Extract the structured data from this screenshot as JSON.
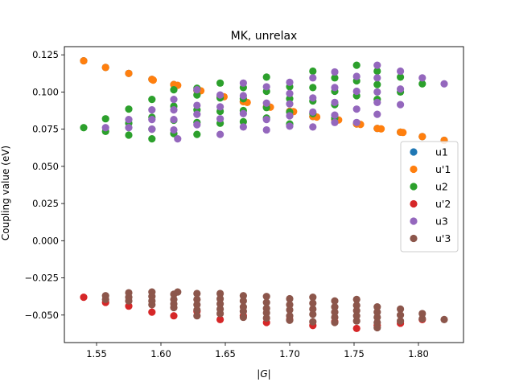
{
  "chart_data": {
    "type": "scatter",
    "title": "MK, unrelax",
    "xlabel": "|G|",
    "ylabel": "Coupling value (eV)",
    "xlim": [
      1.525,
      1.835
    ],
    "ylim": [
      -0.0685,
      0.1305
    ],
    "xticks": [
      1.55,
      1.6,
      1.65,
      1.7,
      1.75,
      1.8
    ],
    "xtick_labels": [
      "1.55",
      "1.60",
      "1.65",
      "1.70",
      "1.75",
      "1.80"
    ],
    "yticks": [
      -0.05,
      -0.025,
      0.0,
      0.025,
      0.05,
      0.075,
      0.1,
      0.125
    ],
    "ytick_labels": [
      "−0.050",
      "−0.025",
      "0.000",
      "0.025",
      "0.050",
      "0.075",
      "0.100",
      "0.125"
    ],
    "legend_position": "center-right",
    "grid": false,
    "series": [
      {
        "name": "u1",
        "color": "#1f77b4",
        "points": [
          [
            1.54,
            0.121
          ],
          [
            1.557,
            0.1165
          ],
          [
            1.575,
            0.1125
          ],
          [
            1.593,
            0.1085
          ],
          [
            1.61,
            0.105
          ],
          [
            1.628,
            0.101
          ],
          [
            1.646,
            0.097
          ],
          [
            1.664,
            0.0935
          ],
          [
            1.682,
            0.09
          ],
          [
            1.7,
            0.087
          ],
          [
            1.718,
            0.0835
          ],
          [
            1.735,
            0.0815
          ],
          [
            1.752,
            0.0785
          ],
          [
            1.768,
            0.0755
          ],
          [
            1.786,
            0.073
          ],
          [
            1.803,
            0.07
          ],
          [
            1.82,
            0.0675
          ]
        ]
      },
      {
        "name": "u'1",
        "color": "#ff7f0e",
        "points": [
          [
            1.54,
            0.121
          ],
          [
            1.557,
            0.1165
          ],
          [
            1.575,
            0.1125
          ],
          [
            1.593,
            0.1085
          ],
          [
            1.594,
            0.108
          ],
          [
            1.61,
            0.105
          ],
          [
            1.613,
            0.1045
          ],
          [
            1.628,
            0.101
          ],
          [
            1.631,
            0.1008
          ],
          [
            1.646,
            0.097
          ],
          [
            1.649,
            0.0968
          ],
          [
            1.664,
            0.0935
          ],
          [
            1.667,
            0.093
          ],
          [
            1.682,
            0.09
          ],
          [
            1.685,
            0.0898
          ],
          [
            1.7,
            0.087
          ],
          [
            1.703,
            0.0868
          ],
          [
            1.718,
            0.0835
          ],
          [
            1.721,
            0.0832
          ],
          [
            1.735,
            0.0815
          ],
          [
            1.738,
            0.0812
          ],
          [
            1.752,
            0.0785
          ],
          [
            1.755,
            0.0782
          ],
          [
            1.768,
            0.0755
          ],
          [
            1.771,
            0.0752
          ],
          [
            1.786,
            0.073
          ],
          [
            1.788,
            0.0728
          ],
          [
            1.803,
            0.07
          ],
          [
            1.82,
            0.0675
          ]
        ]
      },
      {
        "name": "u2",
        "color": "#2ca02c",
        "points": [
          [
            1.54,
            0.076
          ],
          [
            1.557,
            0.082
          ],
          [
            1.557,
            0.0735
          ],
          [
            1.575,
            0.0885
          ],
          [
            1.575,
            0.079
          ],
          [
            1.575,
            0.071
          ],
          [
            1.593,
            0.095
          ],
          [
            1.593,
            0.083
          ],
          [
            1.593,
            0.075
          ],
          [
            1.593,
            0.0685
          ],
          [
            1.61,
            0.1015
          ],
          [
            1.61,
            0.0905
          ],
          [
            1.61,
            0.081
          ],
          [
            1.61,
            0.072
          ],
          [
            1.628,
            0.1025
          ],
          [
            1.628,
            0.098
          ],
          [
            1.628,
            0.088
          ],
          [
            1.628,
            0.0795
          ],
          [
            1.628,
            0.0715
          ],
          [
            1.646,
            0.106
          ],
          [
            1.646,
            0.096
          ],
          [
            1.646,
            0.087
          ],
          [
            1.646,
            0.079
          ],
          [
            1.664,
            0.103
          ],
          [
            1.664,
            0.0955
          ],
          [
            1.664,
            0.0875
          ],
          [
            1.664,
            0.08
          ],
          [
            1.682,
            0.11
          ],
          [
            1.682,
            0.1005
          ],
          [
            1.682,
            0.0895
          ],
          [
            1.682,
            0.0825
          ],
          [
            1.7,
            0.1035
          ],
          [
            1.7,
            0.0955
          ],
          [
            1.7,
            0.0865
          ],
          [
            1.7,
            0.0785
          ],
          [
            1.718,
            0.114
          ],
          [
            1.718,
            0.103
          ],
          [
            1.718,
            0.094
          ],
          [
            1.718,
            0.0855
          ],
          [
            1.735,
            0.1095
          ],
          [
            1.735,
            0.1005
          ],
          [
            1.735,
            0.0915
          ],
          [
            1.735,
            0.0825
          ],
          [
            1.752,
            0.118
          ],
          [
            1.752,
            0.1075
          ],
          [
            1.752,
            0.0975
          ],
          [
            1.768,
            0.114
          ],
          [
            1.768,
            0.105
          ],
          [
            1.768,
            0.095
          ],
          [
            1.786,
            0.11
          ],
          [
            1.786,
            0.1
          ],
          [
            1.803,
            0.1055
          ]
        ]
      },
      {
        "name": "u'2",
        "color": "#d62728",
        "points": [
          [
            1.54,
            -0.038
          ],
          [
            1.557,
            -0.0415
          ],
          [
            1.575,
            -0.044
          ],
          [
            1.593,
            -0.048
          ],
          [
            1.61,
            -0.0505
          ],
          [
            1.628,
            -0.0475
          ],
          [
            1.646,
            -0.053
          ],
          [
            1.664,
            -0.0505
          ],
          [
            1.682,
            -0.055
          ],
          [
            1.7,
            -0.053
          ],
          [
            1.718,
            -0.057
          ],
          [
            1.735,
            -0.0545
          ],
          [
            1.752,
            -0.059
          ],
          [
            1.768,
            -0.057
          ],
          [
            1.786,
            -0.0555
          ],
          [
            1.803,
            -0.053
          ]
        ]
      },
      {
        "name": "u3",
        "color": "#9467bd",
        "points": [
          [
            1.557,
            0.076
          ],
          [
            1.575,
            0.0815
          ],
          [
            1.575,
            0.076
          ],
          [
            1.593,
            0.088
          ],
          [
            1.593,
            0.0815
          ],
          [
            1.593,
            0.075
          ],
          [
            1.61,
            0.095
          ],
          [
            1.61,
            0.088
          ],
          [
            1.61,
            0.0815
          ],
          [
            1.61,
            0.0745
          ],
          [
            1.613,
            0.0685
          ],
          [
            1.628,
            0.1015
          ],
          [
            1.628,
            0.091
          ],
          [
            1.628,
            0.085
          ],
          [
            1.628,
            0.078
          ],
          [
            1.646,
            0.098
          ],
          [
            1.646,
            0.09
          ],
          [
            1.646,
            0.082
          ],
          [
            1.646,
            0.0715
          ],
          [
            1.664,
            0.106
          ],
          [
            1.664,
            0.0975
          ],
          [
            1.664,
            0.0855
          ],
          [
            1.664,
            0.0765
          ],
          [
            1.682,
            0.1035
          ],
          [
            1.682,
            0.0925
          ],
          [
            1.682,
            0.0815
          ],
          [
            1.682,
            0.0745
          ],
          [
            1.7,
            0.1065
          ],
          [
            1.7,
            0.099
          ],
          [
            1.7,
            0.092
          ],
          [
            1.7,
            0.084
          ],
          [
            1.7,
            0.077
          ],
          [
            1.718,
            0.1095
          ],
          [
            1.718,
            0.096
          ],
          [
            1.718,
            0.0865
          ],
          [
            1.718,
            0.0765
          ],
          [
            1.735,
            0.1135
          ],
          [
            1.735,
            0.103
          ],
          [
            1.735,
            0.093
          ],
          [
            1.735,
            0.0845
          ],
          [
            1.735,
            0.0795
          ],
          [
            1.752,
            0.1105
          ],
          [
            1.752,
            0.1005
          ],
          [
            1.752,
            0.0885
          ],
          [
            1.752,
            0.0795
          ],
          [
            1.768,
            0.118
          ],
          [
            1.768,
            0.1095
          ],
          [
            1.768,
            0.1
          ],
          [
            1.768,
            0.093
          ],
          [
            1.768,
            0.085
          ],
          [
            1.786,
            0.114
          ],
          [
            1.786,
            0.102
          ],
          [
            1.786,
            0.0915
          ],
          [
            1.803,
            0.1095
          ],
          [
            1.82,
            0.1055
          ]
        ]
      },
      {
        "name": "u'3",
        "color": "#8c564b",
        "points": [
          [
            1.557,
            -0.037
          ],
          [
            1.557,
            -0.0395
          ],
          [
            1.575,
            -0.035
          ],
          [
            1.575,
            -0.038
          ],
          [
            1.575,
            -0.0405
          ],
          [
            1.593,
            -0.0345
          ],
          [
            1.593,
            -0.0375
          ],
          [
            1.593,
            -0.0405
          ],
          [
            1.593,
            -0.043
          ],
          [
            1.61,
            -0.036
          ],
          [
            1.61,
            -0.0395
          ],
          [
            1.61,
            -0.0425
          ],
          [
            1.61,
            -0.045
          ],
          [
            1.613,
            -0.0345
          ],
          [
            1.628,
            -0.0355
          ],
          [
            1.628,
            -0.0395
          ],
          [
            1.628,
            -0.043
          ],
          [
            1.628,
            -0.0465
          ],
          [
            1.628,
            -0.0505
          ],
          [
            1.646,
            -0.0355
          ],
          [
            1.646,
            -0.039
          ],
          [
            1.646,
            -0.0425
          ],
          [
            1.646,
            -0.046
          ],
          [
            1.646,
            -0.049
          ],
          [
            1.664,
            -0.037
          ],
          [
            1.664,
            -0.0405
          ],
          [
            1.664,
            -0.0445
          ],
          [
            1.664,
            -0.0475
          ],
          [
            1.664,
            -0.0515
          ],
          [
            1.682,
            -0.0375
          ],
          [
            1.682,
            -0.0415
          ],
          [
            1.682,
            -0.0455
          ],
          [
            1.682,
            -0.0485
          ],
          [
            1.682,
            -0.052
          ],
          [
            1.7,
            -0.039
          ],
          [
            1.7,
            -0.043
          ],
          [
            1.7,
            -0.0465
          ],
          [
            1.7,
            -0.0505
          ],
          [
            1.7,
            -0.0535
          ],
          [
            1.718,
            -0.038
          ],
          [
            1.718,
            -0.042
          ],
          [
            1.718,
            -0.046
          ],
          [
            1.718,
            -0.0495
          ],
          [
            1.718,
            -0.0545
          ],
          [
            1.735,
            -0.0405
          ],
          [
            1.735,
            -0.0445
          ],
          [
            1.735,
            -0.048
          ],
          [
            1.735,
            -0.0515
          ],
          [
            1.735,
            -0.055
          ],
          [
            1.752,
            -0.0395
          ],
          [
            1.752,
            -0.0435
          ],
          [
            1.752,
            -0.047
          ],
          [
            1.752,
            -0.0505
          ],
          [
            1.752,
            -0.054
          ],
          [
            1.768,
            -0.0445
          ],
          [
            1.768,
            -0.048
          ],
          [
            1.768,
            -0.0515
          ],
          [
            1.768,
            -0.055
          ],
          [
            1.768,
            -0.0585
          ],
          [
            1.786,
            -0.046
          ],
          [
            1.786,
            -0.05
          ],
          [
            1.786,
            -0.054
          ],
          [
            1.803,
            -0.049
          ],
          [
            1.803,
            -0.0525
          ],
          [
            1.82,
            -0.053
          ]
        ]
      }
    ]
  }
}
